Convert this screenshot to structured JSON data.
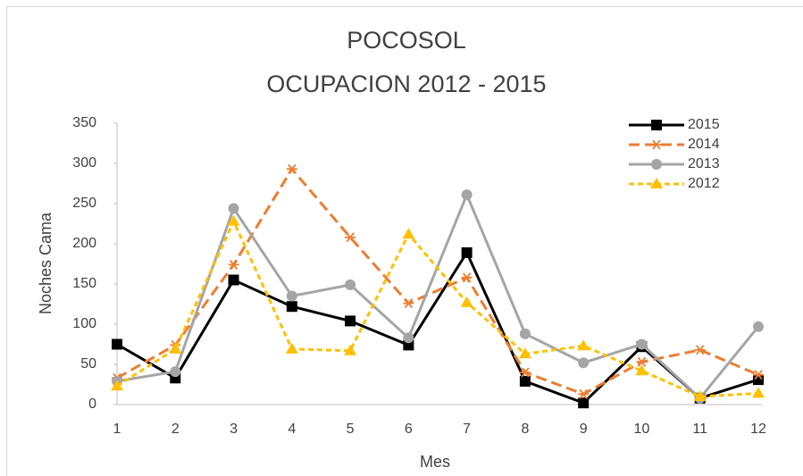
{
  "chart_data": {
    "type": "line",
    "title": [
      "POCOSOL",
      "OCUPACION 2012 - 2015"
    ],
    "x_label": "Mes",
    "y_label": "Noches Cama",
    "categories": [
      "1",
      "2",
      "3",
      "4",
      "5",
      "6",
      "7",
      "8",
      "9",
      "10",
      "11",
      "12"
    ],
    "ylim": [
      0,
      350
    ],
    "yticks": [
      0,
      50,
      100,
      150,
      200,
      250,
      300,
      350
    ],
    "grid": false,
    "legend": "top-right",
    "series": [
      {
        "name": "2015",
        "color": "#000000",
        "marker": "square",
        "dash": "solid",
        "values": [
          75,
          33,
          155,
          122,
          104,
          74,
          189,
          29,
          2,
          72,
          8,
          31
        ]
      },
      {
        "name": "2014",
        "color": "#ED7D31",
        "marker": "asterisk",
        "dash": "dashed",
        "values": [
          33,
          74,
          174,
          293,
          208,
          126,
          158,
          40,
          13,
          53,
          68,
          37
        ]
      },
      {
        "name": "2013",
        "color": "#A5A5A5",
        "marker": "circle",
        "dash": "solid",
        "values": [
          29,
          41,
          244,
          135,
          149,
          83,
          261,
          88,
          52,
          75,
          8,
          97
        ]
      },
      {
        "name": "2012",
        "color": "#FFC000",
        "marker": "triangle",
        "dash": "short-dashed",
        "values": [
          23,
          69,
          228,
          69,
          67,
          212,
          127,
          63,
          73,
          42,
          10,
          14
        ]
      }
    ]
  }
}
